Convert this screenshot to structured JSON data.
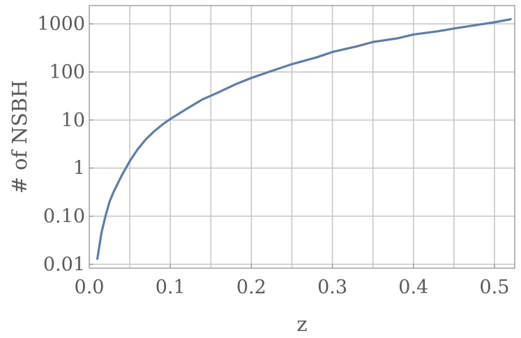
{
  "chart_data": {
    "type": "line",
    "title": "",
    "xlabel": "z",
    "ylabel": "# of NSBH",
    "xlim": [
      0.0,
      0.525
    ],
    "ylim": [
      0.0083,
      2400
    ],
    "yscale": "log",
    "grid": true,
    "legend": "none",
    "colors": {
      "line": "#5b7db1",
      "grid": "#c8c8c8",
      "frame": "#8a8a8a",
      "text": "#5a5a5a"
    },
    "x_ticks": [
      {
        "value": 0.0,
        "label": "0.0"
      },
      {
        "value": 0.1,
        "label": "0.1"
      },
      {
        "value": 0.2,
        "label": "0.2"
      },
      {
        "value": 0.3,
        "label": "0.3"
      },
      {
        "value": 0.4,
        "label": "0.4"
      },
      {
        "value": 0.5,
        "label": "0.5"
      }
    ],
    "x_minor_grid": [
      0.05,
      0.15,
      0.25,
      0.35,
      0.45
    ],
    "y_ticks": [
      {
        "value": 0.01,
        "label": "0.01"
      },
      {
        "value": 0.1,
        "label": "0.10"
      },
      {
        "value": 1,
        "label": "1"
      },
      {
        "value": 10,
        "label": "10"
      },
      {
        "value": 100,
        "label": "100"
      },
      {
        "value": 1000,
        "label": "1000"
      }
    ],
    "series": [
      {
        "x": [
          0.01,
          0.015,
          0.02,
          0.025,
          0.03,
          0.04,
          0.05,
          0.06,
          0.07,
          0.08,
          0.09,
          0.1,
          0.12,
          0.14,
          0.16,
          0.18,
          0.2,
          0.22,
          0.25,
          0.28,
          0.3,
          0.33,
          0.35,
          0.38,
          0.4,
          0.43,
          0.45,
          0.48,
          0.5,
          0.52
        ],
        "y": [
          0.013,
          0.045,
          0.1,
          0.2,
          0.32,
          0.7,
          1.4,
          2.5,
          4.0,
          5.8,
          8.0,
          10.5,
          17,
          27,
          38,
          55,
          75,
          98,
          145,
          200,
          260,
          340,
          420,
          500,
          600,
          700,
          800,
          960,
          1080,
          1250
        ]
      }
    ]
  }
}
